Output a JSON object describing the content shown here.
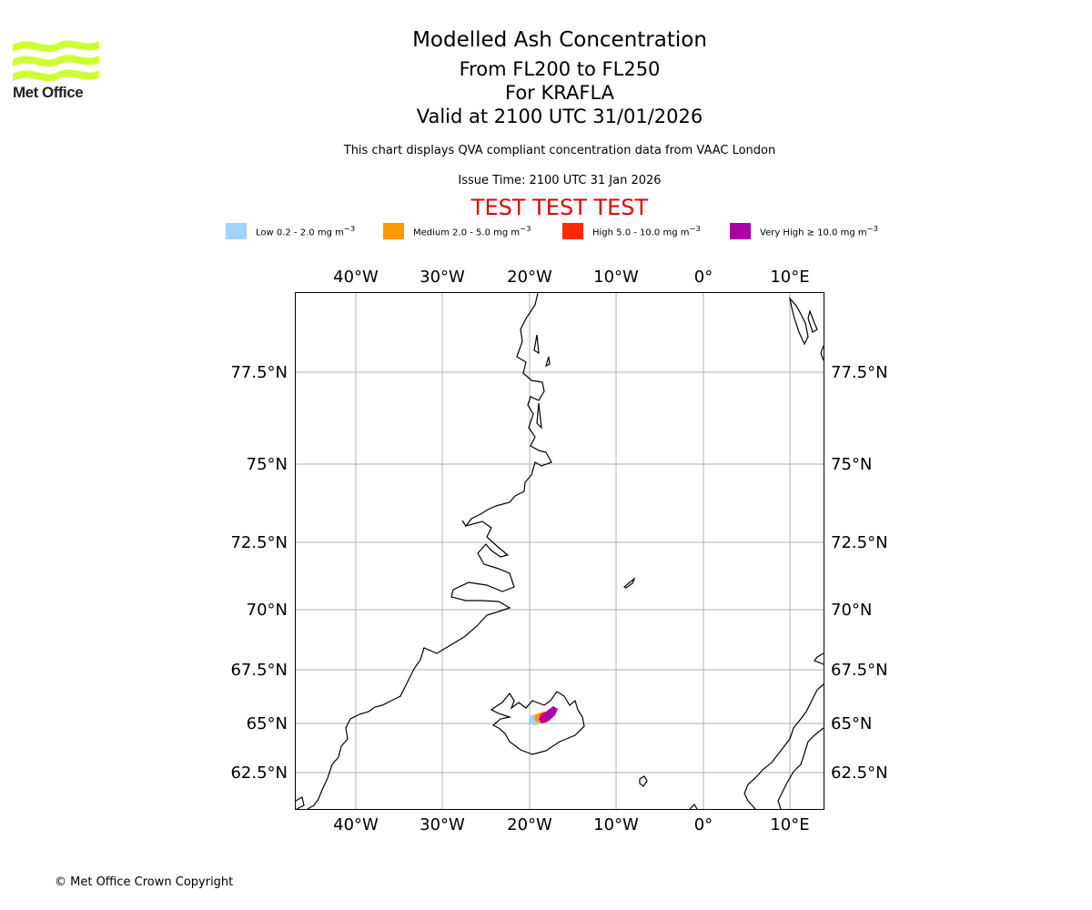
{
  "brand": {
    "logo_text": "Met Office",
    "logo_color": "#ccff33"
  },
  "header": {
    "title": "Modelled Ash Concentration",
    "level": "From FL200 to FL250",
    "volcano": "For KRAFLA",
    "valid": "Valid at 2100 UTC 31/01/2026",
    "note": "This chart displays QVA compliant concentration data from VAAC London",
    "issue": "Issue Time: 2100 UTC 31 Jan 2026",
    "banner": "TEST TEST TEST",
    "banner_color": "#e00000"
  },
  "legend": [
    {
      "label": "Low 0.2 - 2.0 mg m",
      "sup": "−3",
      "color": "#a0d4ff"
    },
    {
      "label": "Medium 2.0 - 5.0 mg m",
      "sup": "−3",
      "color": "#ff9900"
    },
    {
      "label": "High 5.0 - 10.0 mg m",
      "sup": "−3",
      "color": "#ff2a00"
    },
    {
      "label": "Very High  ≥  10.0 mg m",
      "sup": "−3",
      "color": "#aa00aa"
    }
  ],
  "map": {
    "lon_labels": [
      "40°W",
      "30°W",
      "20°W",
      "10°W",
      "0°",
      "10°E"
    ],
    "lat_labels": [
      "77.5°N",
      "75°N",
      "72.5°N",
      "70°N",
      "67.5°N",
      "65°N",
      "62.5°N"
    ]
  },
  "footer": {
    "copyright": "© Met Office Crown Copyright"
  }
}
